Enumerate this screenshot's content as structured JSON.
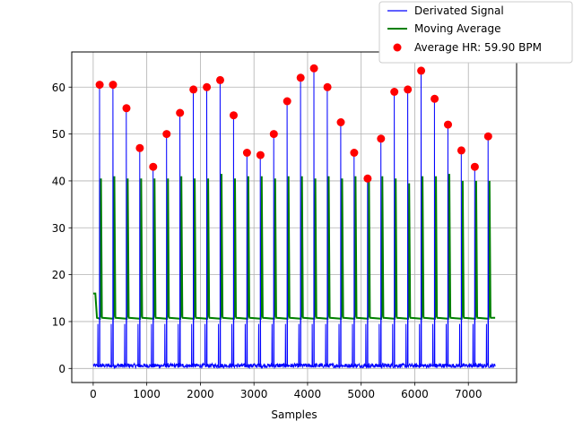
{
  "chart_data": {
    "type": "line",
    "title": "",
    "xlabel": "Samples",
    "ylabel": "",
    "xlim": [
      -400,
      7900
    ],
    "ylim": [
      -3,
      67.5
    ],
    "x_ticks": [
      0,
      1000,
      2000,
      3000,
      4000,
      5000,
      6000,
      7000
    ],
    "y_ticks": [
      0,
      10,
      20,
      30,
      40,
      50,
      60
    ],
    "grid": true,
    "legend_position": "top-right, outside axes",
    "colors": {
      "derivated": "#0000ff",
      "moving_average": "#008000",
      "peaks": "#ff0000"
    },
    "legend": [
      {
        "label": "Derivated Signal",
        "key": "derivated"
      },
      {
        "label": "Moving Average",
        "key": "moving_average"
      },
      {
        "label": "Average HR: 59.90 BPM",
        "key": "peaks"
      }
    ],
    "signal_range": [
      0,
      7500
    ],
    "derivated_baseline": 0.5,
    "derivated_secondary_peak": 9.5,
    "moving_average_baseline": 10.8,
    "moving_average_start": 16,
    "moving_average_peaks": [
      40.5,
      41,
      40.5,
      40.5,
      40.5,
      40.5,
      41,
      40.5,
      40.5,
      41.5,
      40.5,
      41,
      41,
      40.5,
      41,
      41,
      40.5,
      41,
      40.5,
      41,
      40.5,
      41,
      40.5,
      39.5,
      41,
      41,
      41.5,
      40,
      40,
      40
    ],
    "peaks": {
      "name": "Average HR: 59.90 BPM",
      "x": [
        120,
        370,
        620,
        870,
        1120,
        1370,
        1620,
        1870,
        2120,
        2370,
        2620,
        2870,
        3120,
        3370,
        3620,
        3870,
        4120,
        4370,
        4620,
        4870,
        5120,
        5370,
        5620,
        5870,
        6120,
        6370,
        6620,
        6870,
        7120,
        7370
      ],
      "y": [
        60.5,
        60.5,
        55.5,
        47,
        43,
        50,
        54.5,
        59.5,
        60,
        61.5,
        54,
        46,
        45.5,
        50,
        57,
        62,
        64,
        60,
        52.5,
        46,
        40.5,
        49,
        59,
        59.5,
        63.5,
        57.5,
        52,
        46.5,
        43,
        49.5
      ]
    }
  }
}
